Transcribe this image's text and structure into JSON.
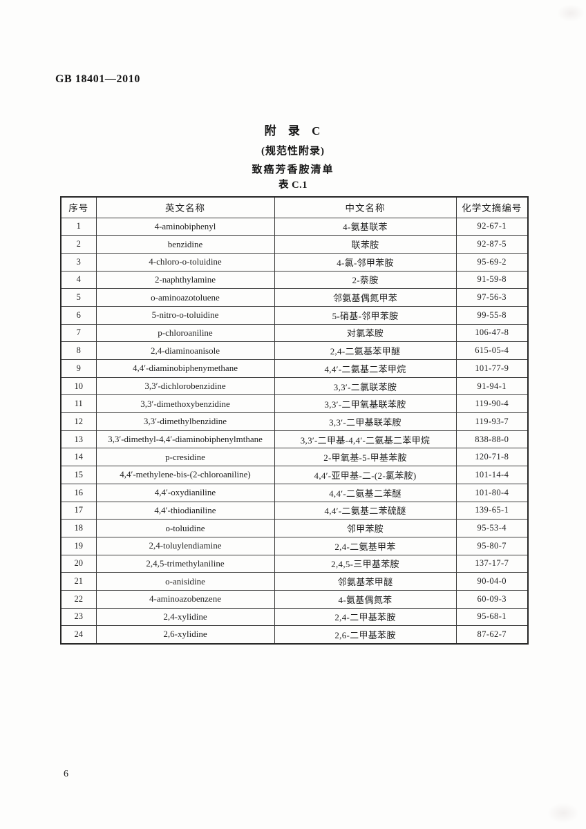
{
  "page": {
    "standard_code": "GB 18401—2010",
    "page_number": "6"
  },
  "appendix": {
    "title": "附 录 C",
    "subtitle": "(规范性附录)",
    "heading": "致癌芳香胺清单",
    "table_caption": "表 C.1"
  },
  "table": {
    "columns": [
      "序号",
      "英文名称",
      "中文名称",
      "化学文摘编号"
    ],
    "rows": [
      [
        "1",
        "4-aminobiphenyl",
        "4-氨基联苯",
        "92-67-1"
      ],
      [
        "2",
        "benzidine",
        "联苯胺",
        "92-87-5"
      ],
      [
        "3",
        "4-chloro-o-toluidine",
        "4-氯-邻甲苯胺",
        "95-69-2"
      ],
      [
        "4",
        "2-naphthylamine",
        "2-萘胺",
        "91-59-8"
      ],
      [
        "5",
        "o-aminoazotoluene",
        "邻氨基偶氮甲苯",
        "97-56-3"
      ],
      [
        "6",
        "5-nitro-o-toluidine",
        "5-硝基-邻甲苯胺",
        "99-55-8"
      ],
      [
        "7",
        "p-chloroaniline",
        "对氯苯胺",
        "106-47-8"
      ],
      [
        "8",
        "2,4-diaminoanisole",
        "2,4-二氨基苯甲醚",
        "615-05-4"
      ],
      [
        "9",
        "4,4′-diaminobiphenymethane",
        "4,4′-二氨基二苯甲烷",
        "101-77-9"
      ],
      [
        "10",
        "3,3′-dichlorobenzidine",
        "3,3′-二氯联苯胺",
        "91-94-1"
      ],
      [
        "11",
        "3,3′-dimethoxybenzidine",
        "3,3′-二甲氧基联苯胺",
        "119-90-4"
      ],
      [
        "12",
        "3,3′-dimethylbenzidine",
        "3,3′-二甲基联苯胺",
        "119-93-7"
      ],
      [
        "13",
        "3,3′-dimethyl-4,4′-diaminobiphenylmthane",
        "3,3′-二甲基-4,4′-二氨基二苯甲烷",
        "838-88-0"
      ],
      [
        "14",
        "p-cresidine",
        "2-甲氧基-5-甲基苯胺",
        "120-71-8"
      ],
      [
        "15",
        "4,4′-methylene-bis-(2-chloroaniline)",
        "4,4′-亚甲基-二-(2-氯苯胺)",
        "101-14-4"
      ],
      [
        "16",
        "4,4′-oxydianiline",
        "4,4′-二氨基二苯醚",
        "101-80-4"
      ],
      [
        "17",
        "4,4′-thiodianiline",
        "4,4′-二氨基二苯硫醚",
        "139-65-1"
      ],
      [
        "18",
        "o-toluidine",
        "邻甲苯胺",
        "95-53-4"
      ],
      [
        "19",
        "2,4-toluylendiamine",
        "2,4-二氨基甲苯",
        "95-80-7"
      ],
      [
        "20",
        "2,4,5-trimethylaniline",
        "2,4,5-三甲基苯胺",
        "137-17-7"
      ],
      [
        "21",
        "o-anisidine",
        "邻氨基苯甲醚",
        "90-04-0"
      ],
      [
        "22",
        "4-aminoazobenzene",
        "4-氨基偶氮苯",
        "60-09-3"
      ],
      [
        "23",
        "2,4-xylidine",
        "2,4-二甲基苯胺",
        "95-68-1"
      ],
      [
        "24",
        "2,6-xylidine",
        "2,6-二甲基苯胺",
        "87-62-7"
      ]
    ]
  }
}
